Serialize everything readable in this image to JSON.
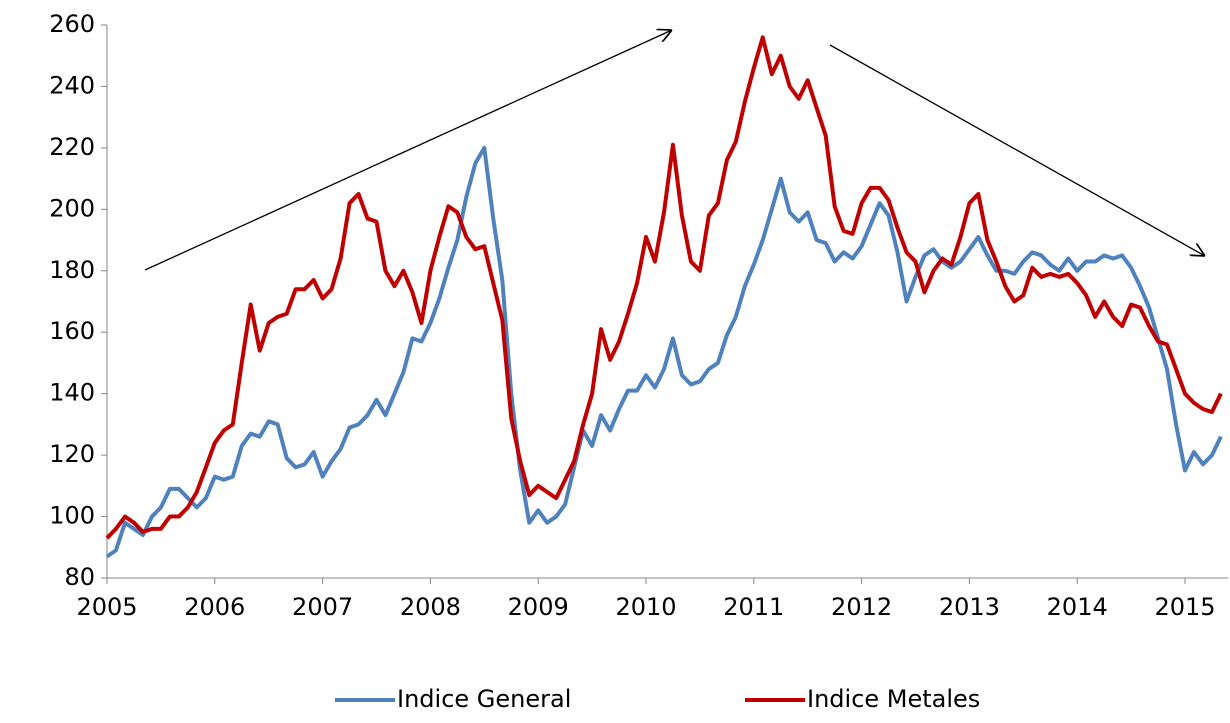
{
  "chart_data": {
    "type": "line",
    "x": [
      2005,
      2005.083,
      2005.167,
      2005.25,
      2005.333,
      2005.417,
      2005.5,
      2005.583,
      2005.667,
      2005.75,
      2005.833,
      2005.917,
      2006,
      2006.083,
      2006.167,
      2006.25,
      2006.333,
      2006.417,
      2006.5,
      2006.583,
      2006.667,
      2006.75,
      2006.833,
      2006.917,
      2007,
      2007.083,
      2007.167,
      2007.25,
      2007.333,
      2007.417,
      2007.5,
      2007.583,
      2007.667,
      2007.75,
      2007.833,
      2007.917,
      2008,
      2008.083,
      2008.167,
      2008.25,
      2008.333,
      2008.417,
      2008.5,
      2008.583,
      2008.667,
      2008.75,
      2008.833,
      2008.917,
      2009,
      2009.083,
      2009.167,
      2009.25,
      2009.333,
      2009.417,
      2009.5,
      2009.583,
      2009.667,
      2009.75,
      2009.833,
      2009.917,
      2010,
      2010.083,
      2010.167,
      2010.25,
      2010.333,
      2010.417,
      2010.5,
      2010.583,
      2010.667,
      2010.75,
      2010.833,
      2010.917,
      2011,
      2011.083,
      2011.167,
      2011.25,
      2011.333,
      2011.417,
      2011.5,
      2011.583,
      2011.667,
      2011.75,
      2011.833,
      2011.917,
      2012,
      2012.083,
      2012.167,
      2012.25,
      2012.333,
      2012.417,
      2012.5,
      2012.583,
      2012.667,
      2012.75,
      2012.833,
      2012.917,
      2013,
      2013.083,
      2013.167,
      2013.25,
      2013.333,
      2013.417,
      2013.5,
      2013.583,
      2013.667,
      2013.75,
      2013.833,
      2013.917,
      2014,
      2014.083,
      2014.167,
      2014.25,
      2014.333,
      2014.417,
      2014.5,
      2014.583,
      2014.667,
      2014.75,
      2014.833,
      2014.917,
      2015,
      2015.083,
      2015.167,
      2015.25,
      2015.333
    ],
    "series": [
      {
        "name": "Indice General",
        "color": "#4f81bd",
        "values": [
          87,
          89,
          98,
          96,
          94,
          100,
          103,
          109,
          109,
          106,
          103,
          106,
          113,
          112,
          113,
          123,
          127,
          126,
          131,
          130,
          119,
          116,
          117,
          121,
          113,
          118,
          122,
          129,
          130,
          133,
          138,
          133,
          140,
          147,
          158,
          157,
          163,
          171,
          181,
          190,
          204,
          215,
          220,
          197,
          177,
          140,
          115,
          98,
          102,
          98,
          100,
          104,
          116,
          128,
          123,
          133,
          128,
          135,
          141,
          141,
          146,
          142,
          148,
          158,
          146,
          143,
          144,
          148,
          150,
          159,
          165,
          175,
          182,
          190,
          200,
          210,
          199,
          196,
          199,
          190,
          189,
          183,
          186,
          184,
          188,
          195,
          202,
          198,
          186,
          170,
          178,
          185,
          187,
          183,
          181,
          183,
          187,
          191,
          185,
          180,
          180,
          179,
          183,
          186,
          185,
          182,
          180,
          184,
          180,
          183,
          183,
          185,
          184,
          185,
          181,
          175,
          168,
          158,
          148,
          130,
          115,
          121,
          117,
          120,
          126
        ]
      },
      {
        "name": "Indice Metales",
        "color": "#c00000",
        "values": [
          93,
          96,
          100,
          98,
          95,
          96,
          96,
          100,
          100,
          103,
          108,
          116,
          124,
          128,
          130,
          150,
          169,
          154,
          163,
          165,
          166,
          174,
          174,
          177,
          171,
          174,
          184,
          202,
          205,
          197,
          196,
          180,
          175,
          180,
          173,
          163,
          180,
          191,
          201,
          199,
          191,
          187,
          188,
          176,
          164,
          132,
          118,
          107,
          110,
          108,
          106,
          112,
          118,
          130,
          140,
          161,
          151,
          157,
          166,
          176,
          191,
          183,
          199,
          221,
          198,
          183,
          180,
          198,
          202,
          216,
          222,
          235,
          246,
          256,
          244,
          250,
          240,
          236,
          242,
          233,
          224,
          201,
          193,
          192,
          202,
          207,
          207,
          203,
          194,
          186,
          183,
          173,
          180,
          184,
          182,
          191,
          202,
          205,
          190,
          183,
          175,
          170,
          172,
          181,
          178,
          179,
          178,
          179,
          176,
          172,
          165,
          170,
          165,
          162,
          169,
          168,
          162,
          157,
          156,
          148,
          140,
          137,
          135,
          134,
          140
        ]
      }
    ],
    "xlim": [
      2005,
      2015.4
    ],
    "xticks": [
      2005,
      2006,
      2007,
      2008,
      2009,
      2010,
      2011,
      2012,
      2013,
      2014,
      2015
    ],
    "ylim": [
      80,
      260
    ],
    "yticks": [
      80,
      100,
      120,
      140,
      160,
      180,
      200,
      220,
      240,
      260
    ],
    "grid": false,
    "legend": "bottom"
  }
}
